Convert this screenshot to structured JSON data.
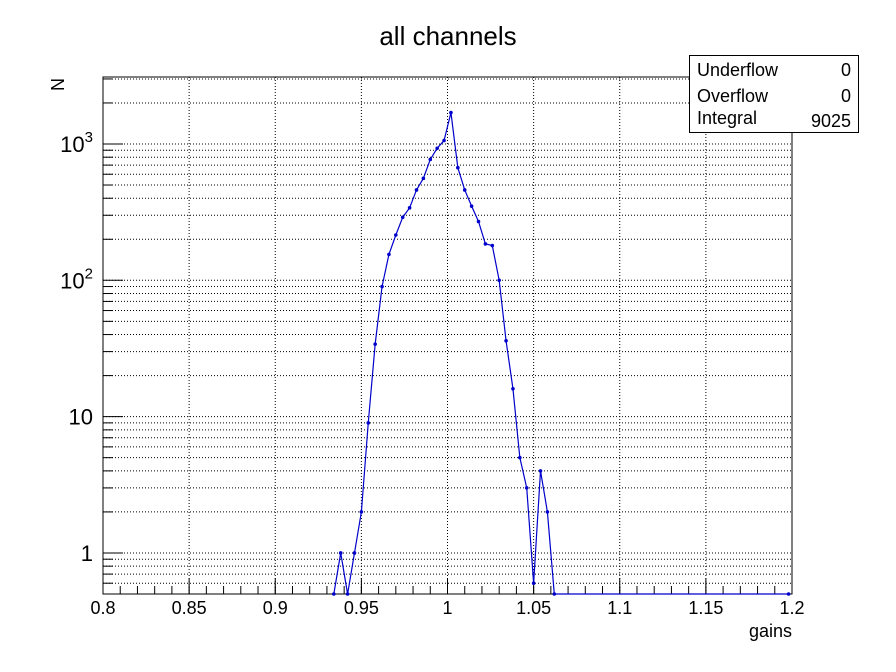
{
  "chart_data": {
    "type": "line",
    "title": "all channels",
    "xlabel": "gains",
    "ylabel": "N",
    "xlim": [
      0.8,
      1.2
    ],
    "ylim": [
      0.5,
      3100
    ],
    "yscale": "log",
    "grid": true,
    "x_ticks": [
      0.8,
      0.85,
      0.9,
      0.95,
      1.0,
      1.05,
      1.1,
      1.15,
      1.2
    ],
    "x_tick_labels": [
      "0.8",
      "0.85",
      "0.9",
      "0.95",
      "1",
      "1.05",
      "1.1",
      "1.15",
      "1.2"
    ],
    "y_tick_labels": [
      {
        "value": 1,
        "base": "1",
        "exp": ""
      },
      {
        "value": 10,
        "base": "10",
        "exp": ""
      },
      {
        "value": 100,
        "base": "10",
        "exp": "2"
      },
      {
        "value": 1000,
        "base": "10",
        "exp": "3"
      }
    ],
    "series": [
      {
        "color": "#0000cc",
        "points": [
          [
            0.934,
            0.5
          ],
          [
            0.938,
            1
          ],
          [
            0.942,
            0.5
          ],
          [
            0.946,
            1
          ],
          [
            0.95,
            2
          ],
          [
            0.954,
            9
          ],
          [
            0.958,
            34
          ],
          [
            0.962,
            90
          ],
          [
            0.966,
            155
          ],
          [
            0.97,
            215
          ],
          [
            0.974,
            290
          ],
          [
            0.978,
            340
          ],
          [
            0.982,
            460
          ],
          [
            0.986,
            560
          ],
          [
            0.99,
            770
          ],
          [
            0.994,
            930
          ],
          [
            0.998,
            1060
          ],
          [
            1.002,
            1700
          ],
          [
            1.006,
            670
          ],
          [
            1.01,
            460
          ],
          [
            1.014,
            350
          ],
          [
            1.018,
            270
          ],
          [
            1.022,
            185
          ],
          [
            1.026,
            180
          ],
          [
            1.03,
            100
          ],
          [
            1.034,
            36
          ],
          [
            1.038,
            16
          ],
          [
            1.042,
            5
          ],
          [
            1.046,
            3
          ],
          [
            1.05,
            0.6
          ],
          [
            1.054,
            4
          ],
          [
            1.058,
            2
          ],
          [
            1.062,
            0.5
          ],
          [
            1.198,
            0.5
          ]
        ]
      }
    ]
  },
  "stats": {
    "underflow_label": "Underflow",
    "underflow_value": "0",
    "overflow_label": "Overflow",
    "overflow_value": "0",
    "integral_label": "Integral",
    "integral_value": "9025"
  }
}
